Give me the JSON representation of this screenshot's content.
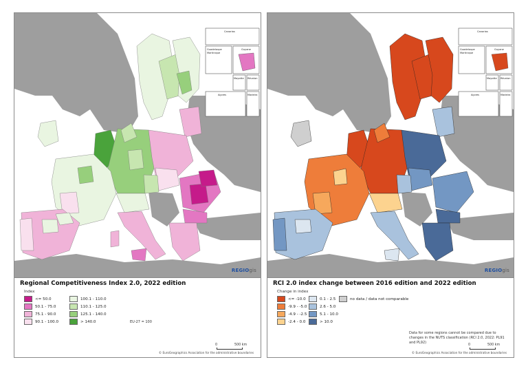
{
  "left": {
    "title": "Regional Competitiveness Index 2.0, 2022 edition",
    "legend_heading": "Index",
    "legend": [
      {
        "label": "<= 50.0",
        "color": "#c51b8a"
      },
      {
        "label": "50.1 - 75.0",
        "color": "#e377c2"
      },
      {
        "label": "75.1 - 90.0",
        "color": "#f0b3d8"
      },
      {
        "label": "90.1 - 100.0",
        "color": "#f9e0ee"
      },
      {
        "label": "100.1 - 110.0",
        "color": "#e9f5e1"
      },
      {
        "label": "110.1 - 125.0",
        "color": "#c7e6b0"
      },
      {
        "label": "125.1 - 140.0",
        "color": "#97cf7c"
      },
      {
        "label": "> 140.0",
        "color": "#4aa33b"
      }
    ],
    "note": "EU-27 = 100",
    "logo_main": "REGIO",
    "logo_suffix": "gis",
    "scale_start": "0",
    "scale_end": "500 km",
    "copyright": "© EuroGeographics Association for the administrative boundaries"
  },
  "right": {
    "title": "RCI 2.0 index change between 2016 edition and 2022 edition",
    "legend_heading": "Change in index",
    "legend": [
      {
        "label": "<= -10.0",
        "color": "#d7481d"
      },
      {
        "label": "-9.9 - -5.0",
        "color": "#ee7d3a"
      },
      {
        "label": "-4.9 - -2.5",
        "color": "#f6a85c"
      },
      {
        "label": "-2.4 - 0.0",
        "color": "#fcd38f"
      },
      {
        "label": "0.1 - 2.5",
        "color": "#dce6f0"
      },
      {
        "label": "2.6 - 5.0",
        "color": "#a9c2dd"
      },
      {
        "label": "5.1 - 10.0",
        "color": "#7397c3"
      },
      {
        "label": "> 10.0",
        "color": "#4a6a98"
      },
      {
        "label": "no data / data not comparable",
        "color": "#cfcfcf"
      }
    ],
    "note": "Data for some regions cannot be compared due to changes in the NUTS classification (RCI 2.0, 2022: PL91 and PL92)",
    "logo_main": "REGIO",
    "logo_suffix": "gis",
    "scale_start": "0",
    "scale_end": "500 km",
    "copyright": "© EuroGeographics Association for the administrative boundaries"
  },
  "insets": {
    "canarias": "Canarias",
    "guadeloupe": "Guadeloupe",
    "martinique": "Martinique",
    "guyane": "Guyane",
    "mayotte": "Mayotte",
    "reunion": "Réunion",
    "acores": "Açores",
    "madeira": "Madeira"
  }
}
